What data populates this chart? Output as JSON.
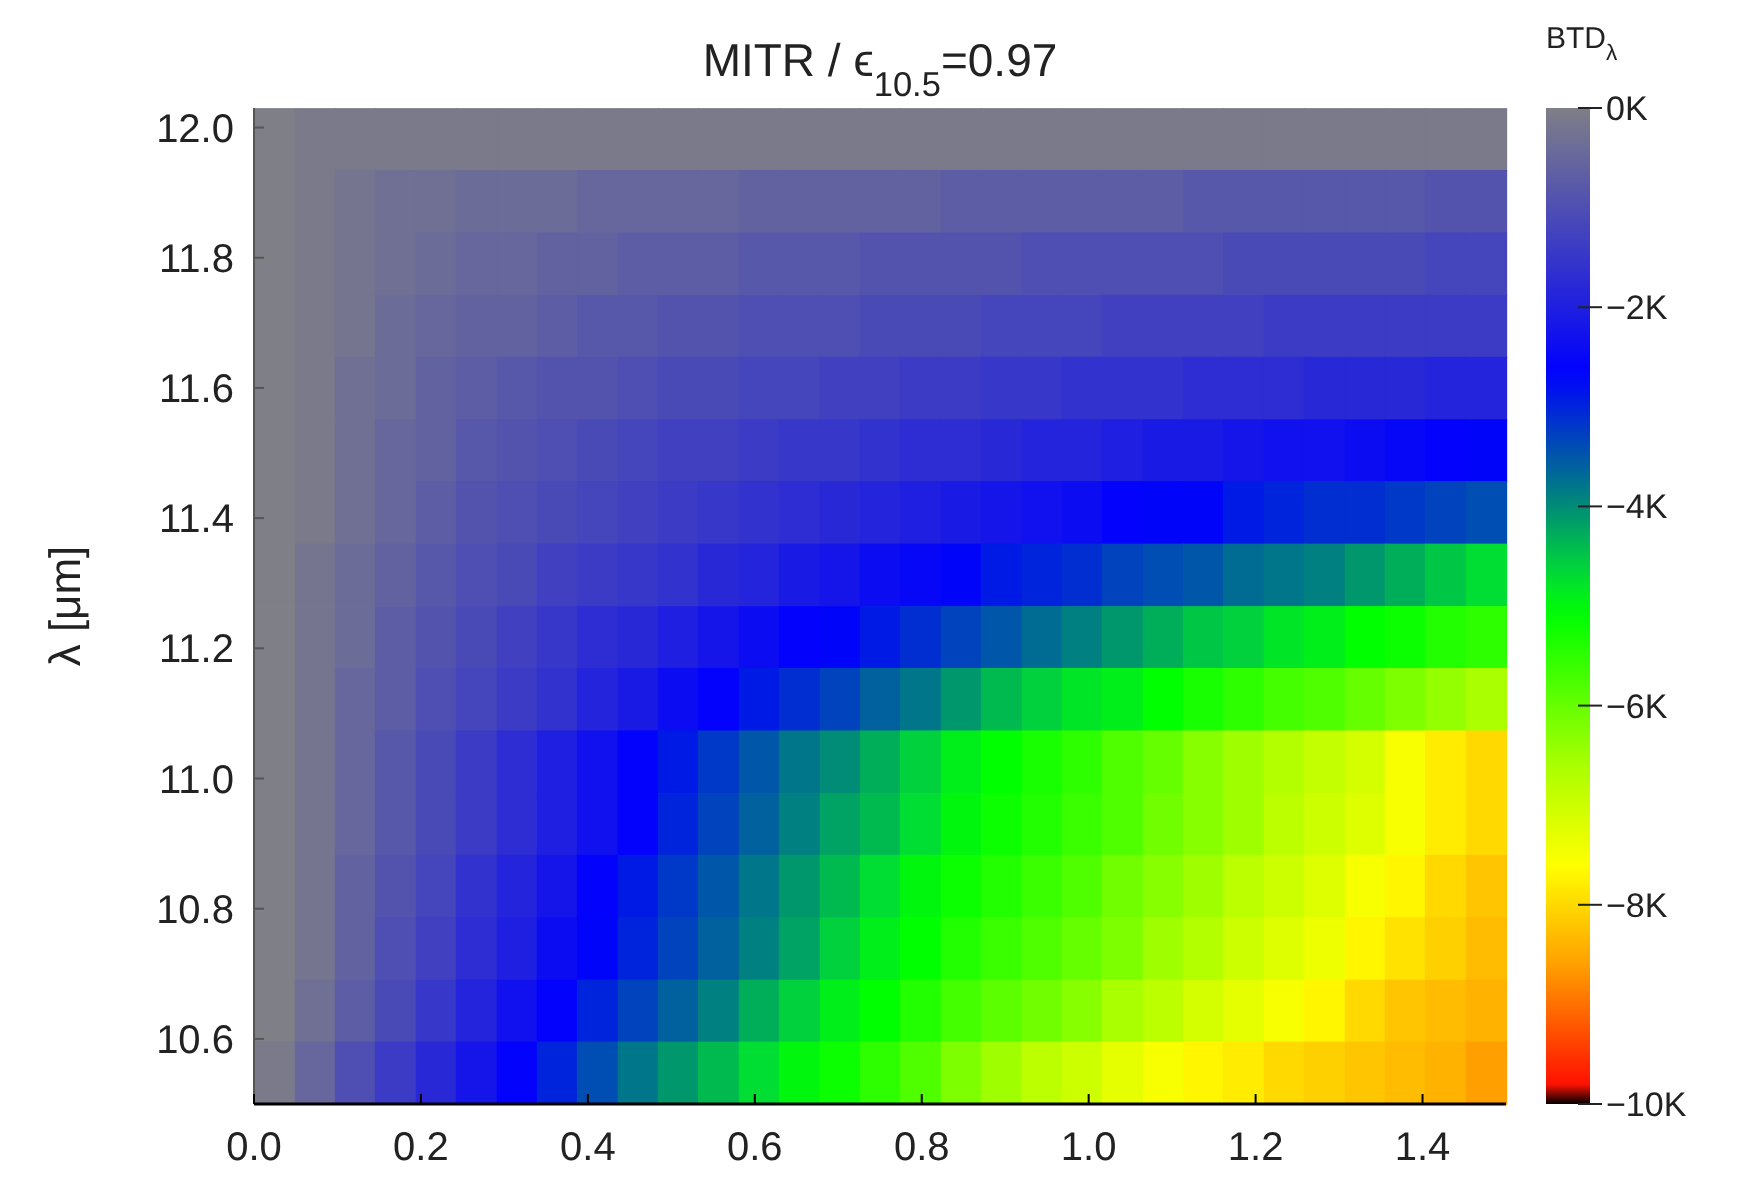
{
  "chart_data": {
    "type": "heatmap",
    "title": "MITR / ϵ$_{10.5}$=0.97",
    "ylabel": "λ [μm]",
    "clabel": "BTD$_{λ}$",
    "x": [
      0.024,
      0.073,
      0.121,
      0.169,
      0.218,
      0.266,
      0.315,
      0.363,
      0.411,
      0.46,
      0.508,
      0.556,
      0.605,
      0.653,
      0.702,
      0.75,
      0.798,
      0.847,
      0.895,
      0.944,
      0.992,
      1.04,
      1.089,
      1.137,
      1.185,
      1.234,
      1.282,
      1.331,
      1.379,
      1.427,
      1.476
    ],
    "y": [
      11.982,
      11.887,
      11.791,
      11.695,
      11.6,
      11.504,
      11.409,
      11.313,
      11.217,
      11.122,
      11.026,
      10.93,
      10.835,
      10.739,
      10.643,
      10.548
    ],
    "xlim": [
      0,
      1.5
    ],
    "xticks": [
      {
        "value": 0,
        "label": "0.0"
      },
      {
        "value": 0.2,
        "label": "0.2"
      },
      {
        "value": 0.4,
        "label": "0.4"
      },
      {
        "value": 0.6,
        "label": "0.6"
      },
      {
        "value": 0.8,
        "label": "0.8"
      },
      {
        "value": 1,
        "label": "1.0"
      },
      {
        "value": 1.2,
        "label": "1.2"
      },
      {
        "value": 1.4,
        "label": "1.4"
      }
    ],
    "ylim": [
      10.5,
      12.03
    ],
    "yticks": [
      10.6,
      10.8,
      {
        "value": 11,
        "label": "11.0"
      },
      11.2,
      11.4,
      11.6,
      11.8,
      {
        "value": 12,
        "label": "12.0"
      }
    ],
    "clim": [
      -10,
      0
    ],
    "cticks": [
      {
        "value": 0,
        "label": "0K"
      },
      {
        "value": -2,
        "label": "−2K"
      },
      {
        "value": -4,
        "label": "−4K"
      },
      {
        "value": -6,
        "label": "−6K"
      },
      {
        "value": -8,
        "label": "−8K"
      },
      {
        "value": -10,
        "label": "−10K"
      }
    ],
    "cells": [
      [
        0,
        -0.1,
        -0.1,
        -0.1,
        -0.1,
        -0.1,
        -0.1,
        -0.1,
        -0.1,
        -0.1,
        -0.1,
        -0.1,
        -0.1,
        -0.1,
        -0.1,
        -0.1,
        -0.1,
        -0.1,
        -0.1,
        -0.1,
        -0.1,
        -0.1,
        -0.1,
        -0.1,
        -0.1,
        -0.1,
        -0.1,
        -0.1,
        -0.1,
        -0.1,
        -0.1
      ],
      [
        0,
        -0.1,
        -0.2,
        -0.3,
        -0.3,
        -0.4,
        -0.4,
        -0.4,
        -0.5,
        -0.5,
        -0.5,
        -0.5,
        -0.6,
        -0.6,
        -0.6,
        -0.6,
        -0.6,
        -0.7,
        -0.7,
        -0.7,
        -0.7,
        -0.7,
        -0.7,
        -0.8,
        -0.8,
        -0.8,
        -0.8,
        -0.8,
        -0.8,
        -0.9,
        -0.9
      ],
      [
        0,
        -0.1,
        -0.2,
        -0.3,
        -0.4,
        -0.5,
        -0.5,
        -0.6,
        -0.6,
        -0.7,
        -0.7,
        -0.7,
        -0.8,
        -0.8,
        -0.8,
        -0.9,
        -0.9,
        -0.9,
        -0.9,
        -1,
        -1,
        -1,
        -1,
        -1,
        -1.1,
        -1.1,
        -1.1,
        -1.1,
        -1.1,
        -1.2,
        -1.2
      ],
      [
        0,
        -0.1,
        -0.2,
        -0.4,
        -0.5,
        -0.6,
        -0.6,
        -0.7,
        -0.8,
        -0.8,
        -0.9,
        -0.9,
        -1,
        -1,
        -1,
        -1.1,
        -1.1,
        -1.1,
        -1.2,
        -1.2,
        -1.2,
        -1.3,
        -1.3,
        -1.3,
        -1.3,
        -1.4,
        -1.4,
        -1.4,
        -1.4,
        -1.4,
        -1.4
      ],
      [
        0,
        -0.1,
        -0.3,
        -0.4,
        -0.6,
        -0.7,
        -0.8,
        -0.9,
        -0.9,
        -1,
        -1.1,
        -1.1,
        -1.2,
        -1.2,
        -1.3,
        -1.3,
        -1.4,
        -1.4,
        -1.5,
        -1.5,
        -1.6,
        -1.6,
        -1.6,
        -1.7,
        -1.7,
        -1.7,
        -1.8,
        -1.8,
        -1.8,
        -1.9,
        -1.9
      ],
      [
        0,
        -0.1,
        -0.3,
        -0.5,
        -0.6,
        -0.8,
        -0.9,
        -1,
        -1.1,
        -1.2,
        -1.3,
        -1.3,
        -1.4,
        -1.5,
        -1.5,
        -1.6,
        -1.7,
        -1.7,
        -1.8,
        -1.9,
        -1.9,
        -2,
        -2.1,
        -2.1,
        -2.2,
        -2.3,
        -2.3,
        -2.4,
        -2.5,
        -2.6,
        -2.7
      ],
      [
        0,
        -0.1,
        -0.3,
        -0.5,
        -0.7,
        -0.9,
        -1,
        -1.1,
        -1.2,
        -1.3,
        -1.4,
        -1.5,
        -1.6,
        -1.7,
        -1.8,
        -1.9,
        -2,
        -2.1,
        -2.2,
        -2.3,
        -2.4,
        -2.6,
        -2.7,
        -2.7,
        -2.9,
        -3,
        -3.1,
        -3.1,
        -3.2,
        -3.3,
        -3.4
      ],
      [
        0,
        -0.2,
        -0.4,
        -0.6,
        -0.8,
        -1,
        -1.1,
        -1.3,
        -1.4,
        -1.5,
        -1.6,
        -1.8,
        -1.9,
        -2.1,
        -2.2,
        -2.4,
        -2.5,
        -2.7,
        -2.9,
        -3,
        -3.1,
        -3.3,
        -3.4,
        -3.5,
        -3.7,
        -3.8,
        -3.9,
        -4.1,
        -4.3,
        -4.5,
        -4.7
      ],
      [
        0,
        -0.2,
        -0.4,
        -0.7,
        -0.9,
        -1.1,
        -1.3,
        -1.5,
        -1.7,
        -1.8,
        -2,
        -2.2,
        -2.4,
        -2.6,
        -2.7,
        -2.9,
        -3.1,
        -3.3,
        -3.5,
        -3.7,
        -3.9,
        -4.1,
        -4.3,
        -4.5,
        -4.6,
        -4.8,
        -4.9,
        -5.1,
        -5.2,
        -5.4,
        -5.5
      ],
      [
        0,
        -0.2,
        -0.5,
        -0.7,
        -1,
        -1.2,
        -1.4,
        -1.6,
        -1.9,
        -2.1,
        -2.4,
        -2.6,
        -2.9,
        -3.1,
        -3.3,
        -3.6,
        -3.8,
        -4.1,
        -4.4,
        -4.6,
        -4.8,
        -4.9,
        -5.1,
        -5.3,
        -5.5,
        -5.7,
        -5.8,
        -6,
        -6.2,
        -6.4,
        -6.6
      ],
      [
        0,
        -0.2,
        -0.5,
        -0.8,
        -1.1,
        -1.4,
        -1.7,
        -2,
        -2.3,
        -2.6,
        -2.9,
        -3.2,
        -3.5,
        -3.8,
        -4,
        -4.3,
        -4.6,
        -4.9,
        -5.1,
        -5.3,
        -5.5,
        -5.8,
        -6,
        -6.3,
        -6.5,
        -6.7,
        -6.9,
        -7.1,
        -7.5,
        -7.8,
        -8
      ],
      [
        0,
        -0.2,
        -0.5,
        -0.8,
        -1.1,
        -1.4,
        -1.7,
        -2,
        -2.3,
        -2.6,
        -3,
        -3.3,
        -3.6,
        -3.9,
        -4.2,
        -4.4,
        -4.7,
        -5,
        -5.2,
        -5.4,
        -5.6,
        -5.8,
        -6.1,
        -6.3,
        -6.5,
        -6.8,
        -7,
        -7.2,
        -7.5,
        -7.8,
        -8
      ],
      [
        0,
        -0.2,
        -0.6,
        -0.9,
        -1.2,
        -1.6,
        -1.9,
        -2.2,
        -2.6,
        -2.9,
        -3.2,
        -3.5,
        -3.8,
        -4.1,
        -4.4,
        -4.7,
        -5,
        -5.2,
        -5.4,
        -5.6,
        -5.8,
        -6.1,
        -6.3,
        -6.5,
        -6.8,
        -7,
        -7.2,
        -7.5,
        -7.7,
        -8,
        -8.2
      ],
      [
        0,
        -0.2,
        -0.6,
        -1,
        -1.3,
        -1.7,
        -2,
        -2.4,
        -2.7,
        -3,
        -3.3,
        -3.6,
        -3.9,
        -4.2,
        -4.6,
        -4.9,
        -5.1,
        -5.4,
        -5.6,
        -5.8,
        -6,
        -6.2,
        -6.5,
        -6.7,
        -7,
        -7.2,
        -7.4,
        -7.7,
        -7.9,
        -8.1,
        -8.3
      ],
      [
        0,
        -0.3,
        -0.7,
        -1.1,
        -1.5,
        -1.9,
        -2.3,
        -2.6,
        -3,
        -3.3,
        -3.6,
        -3.9,
        -4.3,
        -4.6,
        -4.9,
        -5.1,
        -5.4,
        -5.7,
        -5.9,
        -6.1,
        -6.3,
        -6.6,
        -6.8,
        -7.1,
        -7.3,
        -7.5,
        -7.7,
        -8,
        -8.2,
        -8.3,
        -8.4
      ],
      [
        -0.1,
        -0.5,
        -1,
        -1.4,
        -1.8,
        -2.2,
        -2.6,
        -3,
        -3.4,
        -3.8,
        -4.1,
        -4.4,
        -4.7,
        -5,
        -5.2,
        -5.5,
        -5.8,
        -6.2,
        -6.5,
        -6.8,
        -7,
        -7.3,
        -7.5,
        -7.7,
        -7.8,
        -8,
        -8.1,
        -8.2,
        -8.3,
        -8.4,
        -8.6
      ]
    ]
  }
}
